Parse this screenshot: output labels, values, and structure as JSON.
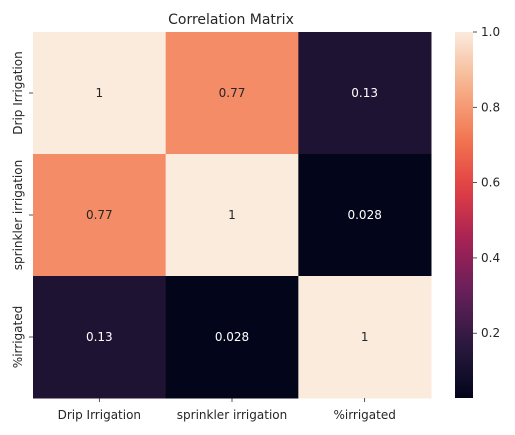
{
  "chart_data": {
    "type": "heatmap",
    "title": "Correlation Matrix",
    "x_labels": [
      "Drip Irrigation",
      "sprinkler irrigation",
      "%irrigated"
    ],
    "y_labels": [
      "Drip Irrigation",
      "sprinkler irrigation",
      "%irrigated"
    ],
    "values": [
      [
        1,
        0.77,
        0.13
      ],
      [
        0.77,
        1,
        0.028
      ],
      [
        0.13,
        0.028,
        1
      ]
    ],
    "value_labels": [
      [
        "1",
        "0.77",
        "0.13"
      ],
      [
        "0.77",
        "1",
        "0.028"
      ],
      [
        "0.13",
        "0.028",
        "1"
      ]
    ],
    "colorbar": {
      "vmin": 0.028,
      "vmax": 1.0,
      "ticks": [
        0.2,
        0.4,
        0.6,
        0.8,
        1.0
      ],
      "tick_labels": [
        "0.2",
        "0.4",
        "0.6",
        "0.8",
        "1.0"
      ]
    },
    "colormap": "rocket"
  }
}
